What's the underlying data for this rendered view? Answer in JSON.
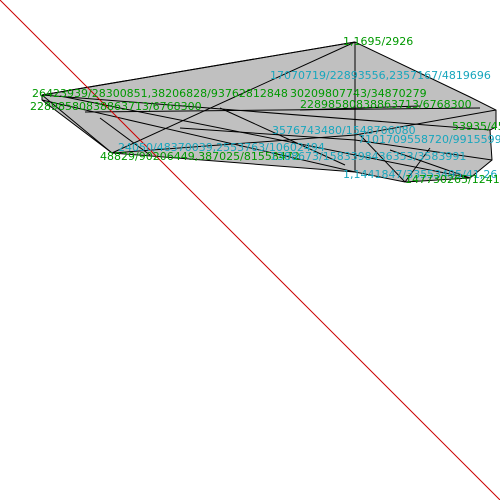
{
  "colors": {
    "background": "#ffffff",
    "fill": "#c0c0c0",
    "edge": "#000000",
    "diagonal": "#cc0000",
    "label_green": "#009900",
    "label_cyan": "#18a6bd"
  },
  "labels": [
    {
      "text": "1,1695/2926",
      "color": "green"
    },
    {
      "text": "17070719/22893556,2357167/4819696",
      "color": "cyan"
    },
    {
      "text": "26423939/28300851,38206828/93762812848",
      "color": "green"
    },
    {
      "text": "30209807743/34870279",
      "color": "green"
    },
    {
      "text": "22898580838863713/6768300",
      "color": "green"
    },
    {
      "text": "22898580838863713/6768300",
      "color": "green"
    },
    {
      "text": "3576743480/1548706080",
      "color": "cyan"
    },
    {
      "text": "7101709558720/9915599",
      "color": "cyan"
    },
    {
      "text": "53935/45",
      "color": "green"
    },
    {
      "text": "24050/48370039,2553763/10602494",
      "color": "cyan"
    },
    {
      "text": "48829/90206449,387025/81558472",
      "color": "green"
    },
    {
      "text": "1388673/1583398436353/3583991",
      "color": "cyan"
    },
    {
      "text": "1,1441847/33553495/41,26",
      "color": "cyan"
    },
    {
      "text": "147730265/1241",
      "color": "green"
    }
  ]
}
